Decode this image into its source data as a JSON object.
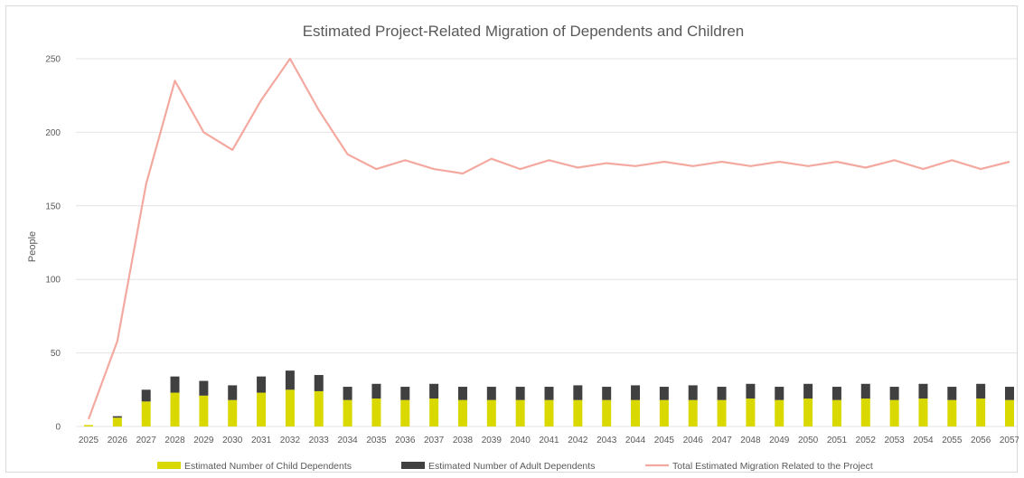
{
  "chart_data": {
    "type": "bar",
    "title": "Estimated Project-Related Migration of Dependents and Children",
    "ylabel": "People",
    "xlabel": "",
    "ylim": [
      0,
      250
    ],
    "yticks": [
      0,
      50,
      100,
      150,
      200,
      250
    ],
    "grid": true,
    "legend_position": "bottom",
    "stacked": true,
    "categories": [
      "2025",
      "2026",
      "2027",
      "2028",
      "2029",
      "2030",
      "2031",
      "2032",
      "2033",
      "2034",
      "2035",
      "2036",
      "2037",
      "2038",
      "2039",
      "2040",
      "2041",
      "2042",
      "2043",
      "2044",
      "2045",
      "2046",
      "2047",
      "2048",
      "2049",
      "2050",
      "2051",
      "2052",
      "2053",
      "2054",
      "2055",
      "2056",
      "2057"
    ],
    "series": [
      {
        "name": "Estimated Number of Child Dependents",
        "type": "bar",
        "color": "#d9d900",
        "values": [
          1,
          6,
          17,
          23,
          21,
          18,
          23,
          25,
          24,
          18,
          19,
          18,
          19,
          18,
          18,
          18,
          18,
          18,
          18,
          18,
          18,
          18,
          18,
          19,
          18,
          19,
          18,
          19,
          18,
          19,
          18,
          19,
          18
        ]
      },
      {
        "name": "Estimated Number of Adult Dependents",
        "type": "bar",
        "color": "#404040",
        "values": [
          0,
          1,
          8,
          11,
          10,
          10,
          11,
          13,
          11,
          9,
          10,
          9,
          10,
          9,
          9,
          9,
          9,
          10,
          9,
          10,
          9,
          10,
          9,
          10,
          9,
          10,
          9,
          10,
          9,
          10,
          9,
          10,
          9
        ]
      },
      {
        "name": "Total Estimated Migration Related to the Project",
        "type": "line",
        "color": "#f4a9a0",
        "values": [
          5,
          58,
          165,
          235,
          200,
          188,
          222,
          250,
          215,
          185,
          175,
          181,
          175,
          172,
          182,
          175,
          181,
          176,
          179,
          177,
          180,
          177,
          180,
          177,
          180,
          177,
          180,
          176,
          181,
          175,
          181,
          175,
          180
        ]
      }
    ]
  }
}
